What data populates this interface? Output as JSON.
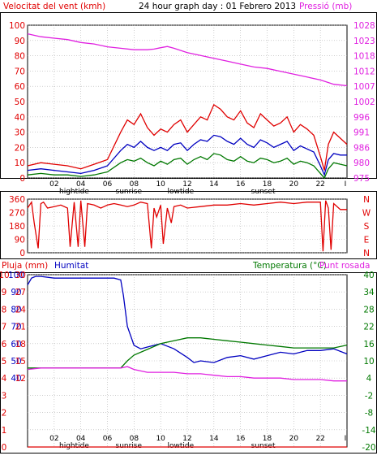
{
  "colors": {
    "red": "#e00000",
    "magenta": "#e020e0",
    "blue": "#0000c0",
    "green": "#007800",
    "frame": "#000000",
    "grid": "#b0b0b0",
    "background": "#ffffff"
  },
  "header": {
    "wind_title": "Velocitat del vent (kmh)",
    "main_title": "24 hour graph day : 01 Febrero 2013",
    "pressure_title": "Pressió (mb)"
  },
  "x_ticks": [
    "02",
    "04",
    "06",
    "08",
    "10",
    "12",
    "14",
    "16",
    "18",
    "20",
    "22"
  ],
  "x_events": [
    "hightide",
    "sunrise",
    "lowtide",
    "sunset"
  ],
  "x_end_mark": "I",
  "chart_data": [
    {
      "type": "line",
      "name": "wind-pressure",
      "x_range": [
        0,
        24
      ],
      "left_axis": {
        "title": "Velocitat del vent (kmh)",
        "range": [
          0,
          100
        ],
        "ticks": [
          "0",
          "10",
          "20",
          "30",
          "40",
          "50",
          "60",
          "70",
          "80",
          "90",
          "100"
        ]
      },
      "right_axis": {
        "title": "Pressió (mb)",
        "range": [
          975,
          1028
        ],
        "ticks": [
          "975",
          "980",
          "986",
          "991",
          "996",
          "1002",
          "1007",
          "1012",
          "1018",
          "1023",
          "1028"
        ]
      },
      "series": [
        {
          "key": "gust",
          "color": "#e00000",
          "axis": "left",
          "x": [
            0,
            1,
            2,
            3,
            4,
            5,
            6,
            7,
            7.5,
            8,
            8.5,
            9,
            9.5,
            10,
            10.5,
            11,
            11.5,
            12,
            12.5,
            13,
            13.5,
            14,
            14.5,
            15,
            15.5,
            16,
            16.5,
            17,
            17.5,
            18,
            18.5,
            19,
            19.5,
            20,
            20.5,
            21,
            21.5,
            22,
            22.3,
            22.6,
            23,
            23.5,
            24
          ],
          "y": [
            8,
            10,
            9,
            8,
            6,
            9,
            12,
            30,
            38,
            35,
            42,
            33,
            28,
            32,
            30,
            35,
            38,
            30,
            35,
            40,
            38,
            48,
            45,
            40,
            38,
            44,
            36,
            33,
            42,
            38,
            34,
            36,
            40,
            30,
            35,
            32,
            28,
            14,
            5,
            22,
            30,
            26,
            22
          ]
        },
        {
          "key": "speed",
          "color": "#0000c0",
          "axis": "left",
          "x": [
            0,
            1,
            2,
            3,
            4,
            5,
            6,
            7,
            7.5,
            8,
            8.5,
            9,
            9.5,
            10,
            10.5,
            11,
            11.5,
            12,
            12.5,
            13,
            13.5,
            14,
            14.5,
            15,
            15.5,
            16,
            16.5,
            17,
            17.5,
            18,
            18.5,
            19,
            19.5,
            20,
            20.5,
            21,
            21.5,
            22,
            22.3,
            22.6,
            23,
            23.5,
            24
          ],
          "y": [
            5,
            6,
            5,
            4,
            3,
            5,
            8,
            18,
            22,
            20,
            24,
            20,
            18,
            20,
            18,
            22,
            23,
            18,
            22,
            25,
            24,
            28,
            27,
            24,
            22,
            26,
            22,
            20,
            25,
            23,
            20,
            22,
            24,
            18,
            21,
            19,
            17,
            8,
            2,
            12,
            16,
            15,
            15
          ]
        },
        {
          "key": "average",
          "color": "#007800",
          "axis": "left",
          "x": [
            0,
            1,
            2,
            3,
            4,
            5,
            6,
            7,
            7.5,
            8,
            8.5,
            9,
            9.5,
            10,
            10.5,
            11,
            11.5,
            12,
            12.5,
            13,
            13.5,
            14,
            14.5,
            15,
            15.5,
            16,
            16.5,
            17,
            17.5,
            18,
            18.5,
            19,
            19.5,
            20,
            20.5,
            21,
            21.5,
            22,
            22.3,
            22.6,
            23,
            23.5,
            24
          ],
          "y": [
            2,
            3,
            2,
            2,
            1,
            2,
            4,
            10,
            12,
            11,
            13,
            10,
            8,
            11,
            9,
            12,
            13,
            9,
            12,
            14,
            12,
            16,
            15,
            12,
            11,
            14,
            11,
            10,
            13,
            12,
            10,
            11,
            13,
            9,
            11,
            10,
            8,
            3,
            0,
            6,
            10,
            9,
            8
          ]
        },
        {
          "key": "pressure",
          "color": "#e020e0",
          "axis": "right",
          "x": [
            0,
            1,
            2,
            3,
            4,
            5,
            6,
            7,
            8,
            9,
            9.5,
            10,
            10.5,
            11,
            12,
            13,
            14,
            15,
            16,
            17,
            18,
            19,
            20,
            21,
            22,
            23,
            24
          ],
          "y": [
            1025,
            1024,
            1023.5,
            1023,
            1022,
            1021.5,
            1020.5,
            1020,
            1019.5,
            1019.5,
            1019.7,
            1020.2,
            1020.6,
            1020,
            1018.5,
            1017.5,
            1016.5,
            1015.5,
            1014.5,
            1013.5,
            1013,
            1012,
            1011,
            1010,
            1009,
            1007.5,
            1007
          ]
        }
      ]
    },
    {
      "type": "line",
      "name": "wind-direction",
      "x_range": [
        0,
        24
      ],
      "left_axis": {
        "range": [
          0,
          360
        ],
        "ticks": [
          "0",
          "90",
          "180",
          "270",
          "360"
        ]
      },
      "right_axis": {
        "range": [
          0,
          360
        ],
        "ticks": [
          "N",
          "E",
          "S",
          "W",
          "N"
        ]
      },
      "series": [
        {
          "key": "direction",
          "color": "#e00000",
          "axis": "left",
          "x": [
            0,
            0.3,
            0.5,
            0.8,
            1,
            1.2,
            1.5,
            2,
            2.5,
            3,
            3.2,
            3.5,
            3.8,
            4,
            4.3,
            4.5,
            5,
            5.5,
            6,
            6.5,
            7,
            7.5,
            8,
            8.5,
            9,
            9.3,
            9.5,
            9.7,
            10,
            10.2,
            10.5,
            10.8,
            11,
            11.5,
            12,
            13,
            14,
            15,
            16,
            17,
            18,
            19,
            20,
            21,
            22,
            22.2,
            22.4,
            22.6,
            22.8,
            23,
            23.5,
            24
          ],
          "y": [
            300,
            340,
            200,
            30,
            330,
            340,
            300,
            310,
            320,
            300,
            40,
            340,
            40,
            350,
            40,
            330,
            320,
            300,
            320,
            330,
            320,
            310,
            320,
            340,
            330,
            30,
            300,
            240,
            320,
            60,
            300,
            200,
            310,
            320,
            300,
            310,
            320,
            320,
            330,
            320,
            330,
            340,
            330,
            340,
            340,
            10,
            350,
            300,
            20,
            330,
            290,
            290
          ]
        }
      ]
    },
    {
      "type": "line",
      "name": "rain-humidity-temperature",
      "x_range": [
        0,
        24
      ],
      "left_axis": {
        "title": "Pluja (mm)",
        "range": [
          0,
          10
        ],
        "ticks": [
          "0",
          "1",
          "2",
          "3",
          "4",
          "5",
          "6",
          "7",
          "8",
          "9",
          "10"
        ]
      },
      "left_axis_2": {
        "title": "Humitat",
        "range": [
          0,
          100
        ],
        "ticks": [
          "",
          "",
          "",
          "",
          "40",
          "50",
          "60",
          "70",
          "80",
          "90",
          "100"
        ]
      },
      "left_axis_3": {
        "range": [
          0,
          30
        ],
        "ticks": [
          "",
          "",
          "",
          "",
          "12",
          "15",
          "18",
          "21",
          "24",
          "27",
          "30"
        ]
      },
      "right_axis": {
        "title": "Temperatura (°C)",
        "title_2": "Punt rosada",
        "range": [
          -20,
          40
        ],
        "ticks": [
          "-20",
          "-14",
          "-8",
          "-2",
          "4",
          "10",
          "16",
          "22",
          "28",
          "34",
          "40"
        ]
      },
      "series": [
        {
          "key": "rain",
          "color": "#e00000",
          "axis": "left",
          "x": [
            0,
            24
          ],
          "y": [
            0,
            0
          ]
        },
        {
          "key": "humidity",
          "color": "#0000c0",
          "axis": "left_axis_2",
          "x": [
            0,
            0.3,
            0.6,
            1,
            2,
            3,
            4,
            5,
            6,
            6.5,
            7,
            7.2,
            7.5,
            8,
            8.5,
            9,
            10,
            11,
            12,
            12.5,
            13,
            14,
            15,
            16,
            17,
            18,
            19,
            20,
            21,
            22,
            23,
            24
          ],
          "y": [
            94,
            98,
            99,
            99,
            98,
            98,
            98,
            98,
            98,
            98,
            97,
            88,
            70,
            59,
            57,
            58,
            60,
            57,
            52,
            49,
            50,
            49,
            52,
            53,
            51,
            53,
            55,
            54,
            56,
            56,
            57,
            54
          ]
        },
        {
          "key": "temperature",
          "color": "#007800",
          "axis": "right",
          "x": [
            0,
            1,
            2,
            3,
            4,
            5,
            6,
            7,
            7.5,
            8,
            9,
            10,
            11,
            12,
            13,
            14,
            15,
            16,
            17,
            18,
            19,
            20,
            21,
            22,
            23,
            24
          ],
          "y": [
            7.5,
            7.5,
            7.5,
            7.5,
            7.5,
            7.5,
            7.5,
            7.5,
            10,
            12,
            14,
            16,
            17,
            18,
            18,
            17.5,
            17,
            16.5,
            16,
            15.5,
            15,
            14.5,
            14.5,
            14.5,
            14.5,
            15.5
          ]
        },
        {
          "key": "dewpoint",
          "color": "#e020e0",
          "axis": "right",
          "x": [
            0,
            1,
            2,
            3,
            4,
            5,
            6,
            7,
            7.5,
            8,
            9,
            10,
            11,
            12,
            13,
            14,
            15,
            16,
            17,
            18,
            19,
            20,
            21,
            22,
            23,
            24
          ],
          "y": [
            7,
            7.5,
            7.5,
            7.5,
            7.5,
            7.5,
            7.5,
            7.5,
            8,
            7,
            6,
            6,
            6,
            5.5,
            5.5,
            5,
            4.5,
            4.5,
            4,
            4,
            4,
            3.5,
            3.5,
            3.5,
            3,
            3
          ]
        }
      ]
    }
  ],
  "panel_titles": {
    "rain": "Pluja (mm)",
    "humidity": "Humitat",
    "temperature": "Temperatura (°C)",
    "dewpoint": "Punt rosada"
  }
}
